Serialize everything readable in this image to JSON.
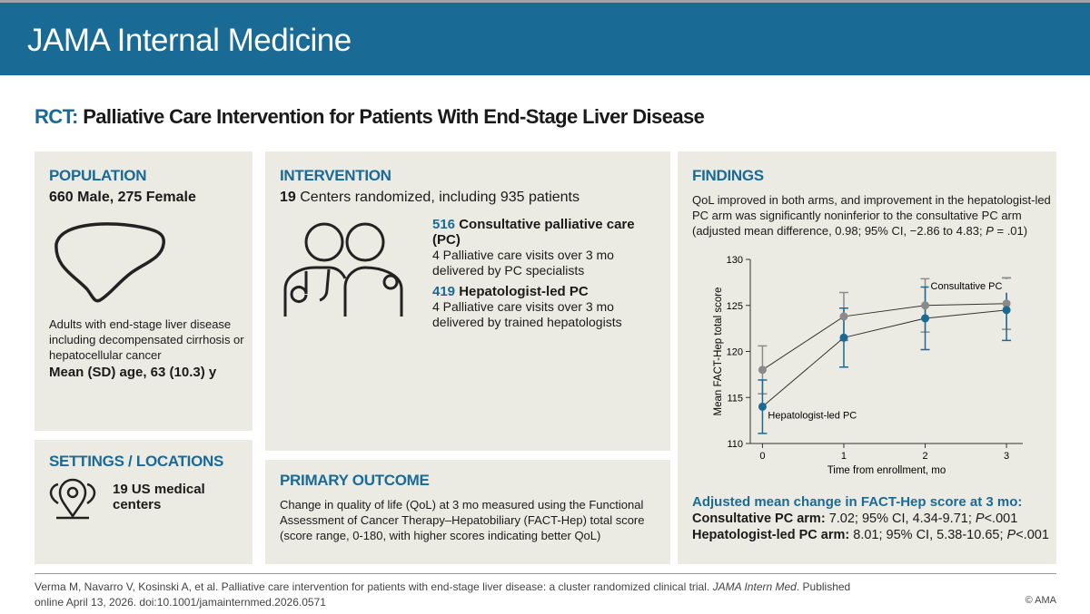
{
  "header": {
    "title": "JAMA Internal Medicine"
  },
  "headline": {
    "label": "RCT:",
    "title": "Palliative Care Intervention for Patients With End-Stage Liver Disease"
  },
  "population": {
    "heading": "POPULATION",
    "counts": "660 Male, 275 Female",
    "description": "Adults with end-stage liver disease including decompensated cirrhosis or hepatocellular cancer",
    "age": "Mean (SD) age, 63 (10.3) y"
  },
  "settings": {
    "heading": "SETTINGS / LOCATIONS",
    "text": "19 US medical centers"
  },
  "intervention": {
    "heading": "INTERVENTION",
    "centers": "19",
    "summary": "Centers randomized, including 935 patients",
    "arms": [
      {
        "n": "516",
        "name": "Consultative palliative care (PC)",
        "detail": "4 Palliative care visits over 3 mo delivered by PC specialists"
      },
      {
        "n": "419",
        "name": "Hepatologist-led PC",
        "detail": "4 Palliative care visits over 3 mo delivered by trained hepatologists"
      }
    ]
  },
  "primary_outcome": {
    "heading": "PRIMARY OUTCOME",
    "text": "Change in quality of life (QoL) at 3 mo measured using the Functional Assessment of Cancer Therapy–Hepatobiliary (FACT-Hep) total score (score range, 0-180, with higher scores indicating better QoL)"
  },
  "findings": {
    "heading": "FINDINGS",
    "text": "QoL improved in both arms, and improvement in the hepatologist-led PC arm was significantly noninferior to the consultative PC arm (adjusted mean difference, 0.98; 95% CI, −2.86 to 4.83;",
    "p": "P",
    "pval": "= .01)",
    "chart": {
      "type": "line",
      "xlabel": "Time from enrollment, mo",
      "ylabel": "Mean FACT-Hep total score",
      "x": [
        0,
        1,
        2,
        3
      ],
      "xlim": [
        -0.15,
        3.2
      ],
      "xticks": [
        0,
        1,
        2,
        3
      ],
      "ylim": [
        110,
        130
      ],
      "yticks": [
        110,
        115,
        120,
        125,
        130
      ],
      "line_color": "#333333",
      "series": [
        {
          "name": "Consultative PC",
          "color": "#8a8a8a",
          "values": [
            118,
            123.8,
            125,
            125.2
          ],
          "errors": [
            2.6,
            2.6,
            2.9,
            2.8
          ]
        },
        {
          "name": "Hepatologist-led PC",
          "color": "#1a6a96",
          "values": [
            114,
            121.5,
            123.6,
            124.5
          ],
          "errors": [
            2.9,
            3.2,
            3.4,
            3.3
          ]
        }
      ]
    }
  },
  "results": {
    "heading": "Adjusted mean change in FACT-Hep score at 3 mo:",
    "rows": [
      {
        "arm": "Consultative PC arm:",
        "stats": "7.02; 95% CI, 4.34-9.71;",
        "p": "P",
        "pval": "<.001"
      },
      {
        "arm": "Hepatologist-led PC arm:",
        "stats": "8.01; 95% CI, 5.38-10.65;",
        "p": "P",
        "pval": "<.001"
      }
    ]
  },
  "citation": {
    "before": "Verma M, Navarro V, Kosinski A, et al. Palliative care intervention for patients with end-stage liver disease: a cluster randomized clinical trial.",
    "journal": "JAMA Intern Med",
    "after": ". Published online April 13, 2026. doi:10.1001/jamainternmed.2026.0571"
  },
  "copyright": "© AMA"
}
